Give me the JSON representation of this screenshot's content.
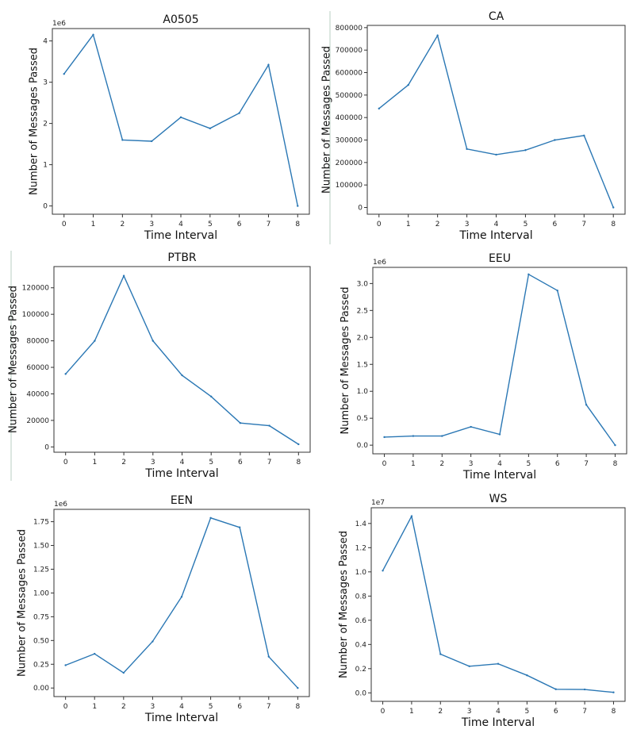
{
  "chart_data": [
    {
      "type": "line",
      "title": "A0505",
      "xlabel": "Time Interval",
      "ylabel": "Number of Messages Passed",
      "multiplier": "1e6",
      "x": [
        0,
        1,
        2,
        3,
        4,
        5,
        6,
        7,
        8
      ],
      "values": [
        3.2,
        4.15,
        1.6,
        1.57,
        2.15,
        1.88,
        2.25,
        3.42,
        0.0
      ],
      "ylim": [
        -0.2,
        4.3
      ],
      "yticks": [
        0,
        1,
        2,
        3,
        4
      ],
      "ytick_labels": [
        "0",
        "1",
        "2",
        "3",
        "4"
      ]
    },
    {
      "type": "line",
      "title": "CA",
      "xlabel": "Time Interval",
      "ylabel": "Number of Messages Passed",
      "multiplier": "",
      "x": [
        0,
        1,
        2,
        3,
        4,
        5,
        6,
        7,
        8
      ],
      "values": [
        440000,
        545000,
        765000,
        260000,
        235000,
        255000,
        300000,
        320000,
        0
      ],
      "ylim": [
        -30000,
        810000
      ],
      "yticks": [
        0,
        100000,
        200000,
        300000,
        400000,
        500000,
        600000,
        700000,
        800000
      ],
      "ytick_labels": [
        "0",
        "100000",
        "200000",
        "300000",
        "400000",
        "500000",
        "600000",
        "700000",
        "800000"
      ]
    },
    {
      "type": "line",
      "title": "PTBR",
      "xlabel": "Time Interval",
      "ylabel": "Number of Messages Passed",
      "multiplier": "",
      "x": [
        0,
        1,
        2,
        3,
        4,
        5,
        6,
        7,
        8
      ],
      "values": [
        55000,
        80000,
        129000,
        80000,
        54000,
        38000,
        18000,
        16000,
        2000
      ],
      "ylim": [
        -4000,
        136000
      ],
      "yticks": [
        0,
        20000,
        40000,
        60000,
        80000,
        100000,
        120000
      ],
      "ytick_labels": [
        "0",
        "20000",
        "40000",
        "60000",
        "80000",
        "100000",
        "120000"
      ]
    },
    {
      "type": "line",
      "title": "EEU",
      "xlabel": "Time Interval",
      "ylabel": "Number of Messages Passed",
      "multiplier": "1e6",
      "x": [
        0,
        1,
        2,
        3,
        4,
        5,
        6,
        7,
        8
      ],
      "values": [
        0.15,
        0.17,
        0.17,
        0.34,
        0.2,
        3.17,
        2.87,
        0.75,
        0.0
      ],
      "ylim": [
        -0.16,
        3.3
      ],
      "yticks": [
        0,
        0.5,
        1.0,
        1.5,
        2.0,
        2.5,
        3.0
      ],
      "ytick_labels": [
        "0.0",
        "0.5",
        "1.0",
        "1.5",
        "2.0",
        "2.5",
        "3.0"
      ]
    },
    {
      "type": "line",
      "title": "EEN",
      "xlabel": "Time Interval",
      "ylabel": "Number of Messages Passed",
      "multiplier": "1e6",
      "x": [
        0,
        1,
        2,
        3,
        4,
        5,
        6,
        7,
        8
      ],
      "values": [
        0.24,
        0.36,
        0.16,
        0.49,
        0.96,
        1.79,
        1.69,
        0.33,
        0.0
      ],
      "ylim": [
        -0.09,
        1.88
      ],
      "yticks": [
        0,
        0.25,
        0.5,
        0.75,
        1.0,
        1.25,
        1.5,
        1.75
      ],
      "ytick_labels": [
        "0.00",
        "0.25",
        "0.50",
        "0.75",
        "1.00",
        "1.25",
        "1.50",
        "1.75"
      ]
    },
    {
      "type": "line",
      "title": "WS",
      "xlabel": "Time Interval",
      "ylabel": "Number of Messages Passed",
      "multiplier": "1e7",
      "x": [
        0,
        1,
        2,
        3,
        4,
        5,
        6,
        7,
        8
      ],
      "values": [
        1.01,
        1.46,
        0.32,
        0.22,
        0.24,
        0.145,
        0.03,
        0.028,
        0.004
      ],
      "ylim": [
        -0.07,
        1.53
      ],
      "yticks": [
        0,
        0.2,
        0.4,
        0.6,
        0.8,
        1.0,
        1.2,
        1.4
      ],
      "ytick_labels": [
        "0.0",
        "0.2",
        "0.4",
        "0.6",
        "0.8",
        "1.0",
        "1.2",
        "1.4"
      ]
    }
  ]
}
